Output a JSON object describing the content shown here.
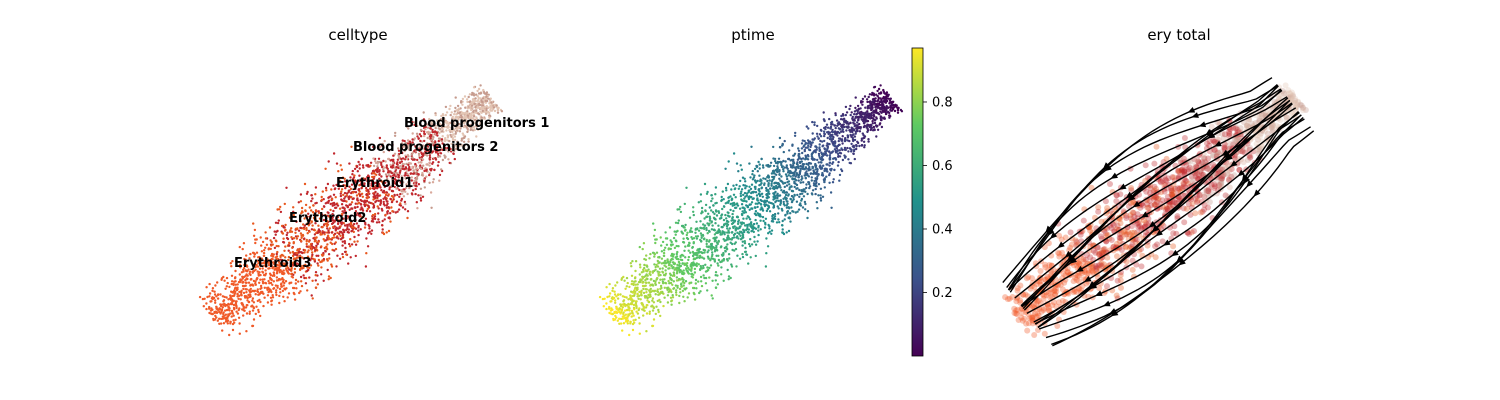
{
  "chart_data": [
    {
      "type": "scatter",
      "title": "celltype",
      "legend_location": "on data",
      "categories": [
        "Blood progenitors 1",
        "Blood progenitors 2",
        "Erythroid1",
        "Erythroid2",
        "Erythroid3"
      ],
      "colors": [
        "#e3c5b4",
        "#c69b8e",
        "#c1272d",
        "#e8581f",
        "#f05a28"
      ]
    },
    {
      "type": "scatter",
      "title": "ptime",
      "colormap": "viridis",
      "colorbar": {
        "ticks": [
          "0.2",
          "0.4",
          "0.6",
          "0.8"
        ],
        "range": [
          0.0,
          0.97
        ]
      }
    },
    {
      "type": "scatter",
      "title": "ery total",
      "overlay": "velocity streamlines",
      "stream_direction": "toward lower-left",
      "colors": [
        "#e3c5b4",
        "#c1272d",
        "#f05a28"
      ]
    }
  ]
}
